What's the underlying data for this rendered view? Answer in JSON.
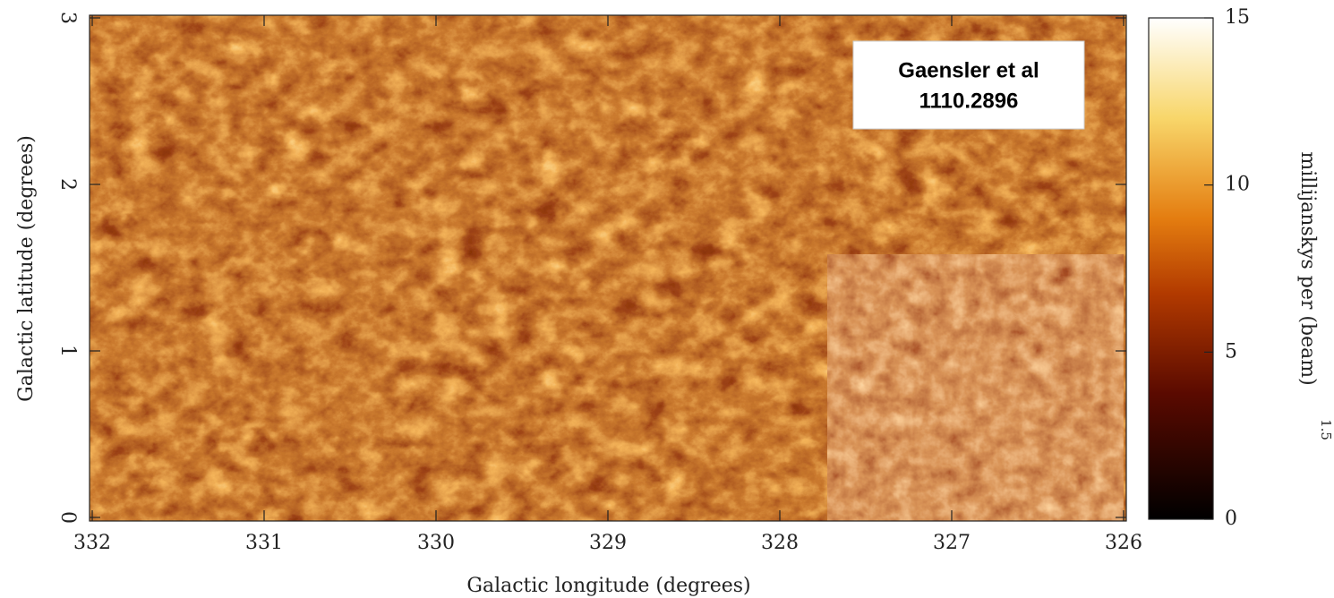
{
  "chart_data": {
    "type": "heatmap",
    "xlabel": "Galactic longitude (degrees)",
    "ylabel": "Galactic latitude (degrees)",
    "xlim": [
      332,
      326
    ],
    "xticks": [
      332,
      331,
      330,
      329,
      328,
      327,
      326
    ],
    "ylim": [
      0,
      3
    ],
    "yticks": [
      0,
      1,
      2,
      3
    ],
    "colorbar": {
      "label": "millijanskys per (beam)",
      "label_exponent": "1.5",
      "lim": [
        0,
        15
      ],
      "ticks": [
        0,
        5,
        10,
        15
      ]
    },
    "annotation": [
      "Gaensler et al",
      "1110.2896"
    ]
  }
}
